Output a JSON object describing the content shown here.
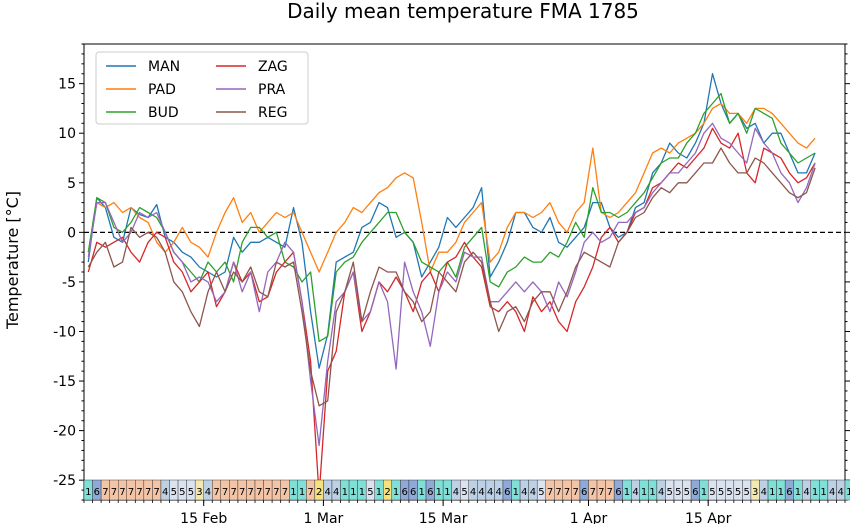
{
  "chart_data": {
    "type": "line",
    "title": "Daily mean temperature FMA 1785",
    "ylabel": "Temperature [°C]",
    "xlabel": "",
    "ylim": [
      -27,
      19
    ],
    "xlim": [
      0,
      89
    ],
    "grid": false,
    "legend": "top-left",
    "zero_line": true,
    "x_tick_labels": [
      {
        "x": 14,
        "label": "15 Feb"
      },
      {
        "x": 28,
        "label": "1 Mar"
      },
      {
        "x": 42,
        "label": "15 Mar"
      },
      {
        "x": 59,
        "label": "1 Apr"
      },
      {
        "x": 73,
        "label": "15 Apr"
      }
    ],
    "y_ticks": [
      -25,
      -20,
      -15,
      -10,
      -5,
      0,
      5,
      10,
      15
    ],
    "series": [
      {
        "name": "MAN",
        "color": "#1f77b4",
        "values": [
          -3,
          3.5,
          2.5,
          -0.5,
          -1,
          2.5,
          1.8,
          1.5,
          2.8,
          -0.5,
          -1,
          -2,
          -2.5,
          -3.5,
          -4,
          -4.5,
          -4,
          -0.5,
          -2,
          -1,
          -1,
          -0.5,
          -1,
          -1.5,
          2.5,
          -1,
          -8,
          -13.7,
          -10.3,
          -3,
          -2.5,
          -2,
          0.5,
          1,
          3,
          2.5,
          -0.5,
          0,
          -1,
          -4.5,
          -3,
          -1.5,
          1.5,
          0.5,
          1.5,
          2.5,
          4.5,
          -4.5,
          -3,
          -1,
          2,
          2,
          0.5,
          0,
          1.5,
          -1,
          -1.5,
          -0.5,
          0.5,
          3,
          3,
          0.5,
          -0.5,
          0,
          2.5,
          3,
          6,
          7,
          9,
          8,
          7.5,
          9,
          11,
          16,
          13,
          11,
          12,
          10.5,
          11,
          9,
          10,
          10,
          8,
          6,
          6,
          8
        ]
      },
      {
        "name": "PAD",
        "color": "#ff7f0e",
        "values": [
          -2,
          3,
          2.5,
          3,
          2,
          2.5,
          1.5,
          1,
          -1,
          -2,
          -1,
          0.5,
          -1,
          -1.5,
          -2.5,
          0,
          2,
          3.5,
          1,
          2,
          0,
          1,
          2,
          1.5,
          2,
          0,
          -2,
          -4,
          -2,
          0,
          1,
          2.5,
          2,
          3,
          4,
          4.5,
          5.5,
          6,
          5.5,
          1,
          -4,
          -2,
          -2,
          -1,
          1,
          2,
          3,
          -3,
          -2,
          0.5,
          2,
          2,
          1.5,
          2,
          3,
          1,
          0,
          2,
          3,
          8.5,
          2,
          1.5,
          2,
          3,
          4,
          6,
          8,
          8.5,
          8,
          9,
          9.5,
          10,
          11,
          12.5,
          13,
          12,
          12,
          11,
          12.5,
          12.5,
          12,
          11,
          10,
          9,
          8.5,
          9.5
        ]
      },
      {
        "name": "BUD",
        "color": "#2ca02c",
        "values": [
          -2,
          3.5,
          3,
          0.5,
          0,
          1,
          2.5,
          2,
          1.5,
          0,
          -2,
          -3,
          -4,
          -5,
          -3,
          -4,
          -3,
          -5,
          -1,
          0.5,
          0.5,
          -0.5,
          0,
          -3,
          -3.5,
          -5,
          -4,
          -11,
          -10.5,
          -4,
          -3,
          -2.5,
          -1,
          0,
          1,
          2,
          2,
          0,
          -1,
          -3,
          -3.5,
          -4,
          -3,
          -4.5,
          -1.5,
          -0.5,
          0.5,
          -5,
          -5.5,
          -4,
          -3.5,
          -2.5,
          -3,
          -3,
          -2,
          -2.5,
          -1,
          1,
          -0.5,
          4.5,
          2,
          2,
          1.5,
          2,
          3,
          4,
          5.5,
          7,
          7.5,
          7.5,
          9,
          10,
          12,
          13,
          14,
          11,
          12,
          10,
          12.5,
          12,
          11.5,
          9,
          8,
          7,
          7.5,
          8
        ]
      },
      {
        "name": "ZAG",
        "color": "#d62728",
        "values": [
          -4,
          -1,
          -1.5,
          -1,
          -0.5,
          -2,
          -3,
          -1,
          0,
          -0.5,
          -3,
          -4,
          -6,
          -5,
          -4,
          -7.5,
          -6,
          -3,
          -5,
          -4,
          -7,
          -6.5,
          -4,
          -3,
          -2,
          -7,
          -13,
          -26.5,
          -14,
          -12,
          -6,
          -4,
          -10,
          -8,
          -5,
          -6,
          -4.5,
          -6,
          -8,
          -5,
          -4,
          -6,
          -3,
          -2.5,
          -1,
          -2.5,
          -3.5,
          -7.5,
          -8,
          -7,
          -8,
          -10,
          -6.5,
          -8,
          -7,
          -9,
          -10,
          -7,
          -5.5,
          -3.5,
          -0.5,
          0.5,
          -1,
          0,
          2,
          2.5,
          4.5,
          5,
          6,
          7,
          6.5,
          7.5,
          8.5,
          10.5,
          9,
          8.5,
          10,
          6,
          5,
          8.5,
          8,
          7.5,
          6,
          5,
          5.5,
          7
        ]
      },
      {
        "name": "PRA",
        "color": "#9467bd",
        "values": [
          -2.5,
          3,
          3,
          1,
          -1,
          0,
          2,
          1.5,
          2,
          0,
          -2,
          -3,
          -5,
          -4.5,
          -5,
          -7,
          -6,
          -3,
          -6,
          -4,
          -8,
          -4,
          -3,
          -1,
          -2,
          -7,
          -15,
          -21.5,
          -13,
          -7,
          -6,
          -4,
          -9,
          -8,
          -5,
          -7,
          -13.8,
          -3,
          -6,
          -8,
          -11.5,
          -6,
          -4,
          -5,
          -2,
          -2.5,
          -2.5,
          -7,
          -7,
          -6,
          -5,
          -6,
          -5,
          -6,
          -8,
          -5,
          -6.5,
          -4,
          -1,
          0,
          -1,
          -0.5,
          1,
          1,
          2,
          2.5,
          4,
          5,
          6,
          6,
          7,
          8,
          10,
          11,
          9.5,
          9,
          8,
          7,
          10.5,
          9,
          8,
          6,
          5,
          3,
          4.5,
          7
        ]
      },
      {
        "name": "REG",
        "color": "#8c564b",
        "values": [
          -3.5,
          -2,
          -1,
          -3.5,
          -3,
          0.5,
          -0.5,
          0,
          -0.5,
          -2,
          -5,
          -6,
          -8,
          -9.5,
          -6,
          -4,
          -6,
          -4,
          -5,
          -3.5,
          -6,
          -6.5,
          -3,
          -3.5,
          -3,
          -8,
          -14,
          -17.5,
          -17,
          -8,
          -6,
          -3,
          -9,
          -6,
          -3.5,
          -4,
          -4,
          -6,
          -7,
          -9,
          -8,
          -4,
          -5,
          -6,
          -3,
          -2,
          -3,
          -7,
          -10,
          -8,
          -7.5,
          -9,
          -7,
          -6,
          -6,
          -8,
          -6,
          -3.5,
          -2,
          -2.5,
          -3,
          -3.5,
          -1,
          0,
          1.5,
          2,
          3.5,
          4.5,
          4,
          5,
          5,
          6,
          7,
          7,
          8.5,
          7,
          6,
          6,
          7.5,
          7,
          6,
          5,
          4,
          3.5,
          4,
          6.5
        ]
      }
    ],
    "weather_type_label": "",
    "weather_types": [
      1,
      6,
      7,
      7,
      7,
      7,
      7,
      7,
      7,
      4,
      5,
      5,
      5,
      3,
      4,
      7,
      7,
      7,
      7,
      7,
      7,
      7,
      7,
      7,
      1,
      1,
      7,
      2,
      4,
      4,
      1,
      1,
      1,
      5,
      1,
      2,
      1,
      6,
      6,
      1,
      6,
      1,
      1,
      4,
      5,
      4,
      4,
      4,
      4,
      6,
      1,
      4,
      4,
      5,
      7,
      7,
      7,
      7,
      6,
      7,
      7,
      7,
      6,
      1,
      4,
      1,
      1,
      4,
      5,
      5,
      5,
      6,
      1,
      5,
      5,
      5,
      5,
      5,
      3,
      4,
      1,
      1,
      6,
      1,
      4,
      1,
      1,
      4,
      4,
      1
    ],
    "weather_type_colors": {
      "1": "#7fe0d8",
      "2": "#f7e27a",
      "3": "#f3e9b0",
      "4": "#bcd0e6",
      "5": "#dbe3f0",
      "6": "#8fa9d8",
      "7": "#f4c4a6"
    }
  }
}
